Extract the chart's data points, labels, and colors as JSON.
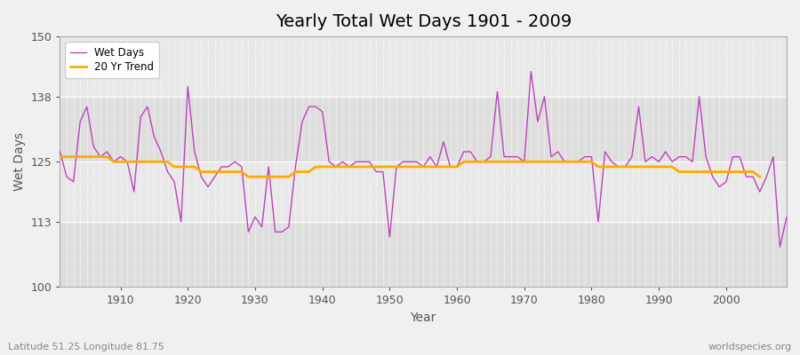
{
  "title": "Yearly Total Wet Days 1901 - 2009",
  "xlabel": "Year",
  "ylabel": "Wet Days",
  "bottom_left_label": "Latitude 51.25 Longitude 81.75",
  "bottom_right_label": "worldspecies.org",
  "ylim": [
    100,
    150
  ],
  "yticks": [
    100,
    113,
    125,
    138,
    150
  ],
  "xlim": [
    1901,
    2009
  ],
  "xticks": [
    1910,
    1920,
    1930,
    1940,
    1950,
    1960,
    1970,
    1980,
    1990,
    2000
  ],
  "background_color": "#f0f0f0",
  "plot_bg_color": "#e8e8e8",
  "band_color_light": "#e8e8e8",
  "band_color_dark": "#dedede",
  "wet_days_color": "#bb44bb",
  "trend_color": "#ffaa00",
  "years": [
    1901,
    1902,
    1903,
    1904,
    1905,
    1906,
    1907,
    1908,
    1909,
    1910,
    1911,
    1912,
    1913,
    1914,
    1915,
    1916,
    1917,
    1918,
    1919,
    1920,
    1921,
    1922,
    1923,
    1924,
    1925,
    1926,
    1927,
    1928,
    1929,
    1930,
    1931,
    1932,
    1933,
    1934,
    1935,
    1936,
    1937,
    1938,
    1939,
    1940,
    1941,
    1942,
    1943,
    1944,
    1945,
    1946,
    1947,
    1948,
    1949,
    1950,
    1951,
    1952,
    1953,
    1954,
    1955,
    1956,
    1957,
    1958,
    1959,
    1960,
    1961,
    1962,
    1963,
    1964,
    1965,
    1966,
    1967,
    1968,
    1969,
    1970,
    1971,
    1972,
    1973,
    1974,
    1975,
    1976,
    1977,
    1978,
    1979,
    1980,
    1981,
    1982,
    1983,
    1984,
    1985,
    1986,
    1987,
    1988,
    1989,
    1990,
    1991,
    1992,
    1993,
    1994,
    1995,
    1996,
    1997,
    1998,
    1999,
    2000,
    2001,
    2002,
    2003,
    2004,
    2005,
    2006,
    2007,
    2008,
    2009
  ],
  "wet_days": [
    127,
    122,
    121,
    133,
    136,
    128,
    126,
    127,
    125,
    126,
    125,
    119,
    134,
    136,
    130,
    127,
    123,
    121,
    113,
    140,
    127,
    122,
    120,
    122,
    124,
    124,
    125,
    124,
    111,
    114,
    112,
    124,
    111,
    111,
    112,
    124,
    133,
    136,
    136,
    135,
    125,
    124,
    125,
    124,
    125,
    125,
    125,
    123,
    123,
    110,
    124,
    125,
    125,
    125,
    124,
    126,
    124,
    129,
    124,
    124,
    127,
    127,
    125,
    125,
    126,
    139,
    126,
    126,
    126,
    125,
    143,
    133,
    138,
    126,
    127,
    125,
    125,
    125,
    126,
    126,
    113,
    127,
    125,
    124,
    124,
    126,
    136,
    125,
    126,
    125,
    127,
    125,
    126,
    126,
    125,
    138,
    126,
    122,
    120,
    121,
    126,
    126,
    122,
    122,
    119,
    122,
    126,
    108,
    114
  ],
  "trend": [
    126,
    126,
    126,
    126,
    126,
    126,
    126,
    126,
    125,
    125,
    125,
    125,
    125,
    125,
    125,
    125,
    125,
    124,
    124,
    124,
    124,
    123,
    123,
    123,
    123,
    123,
    123,
    123,
    122,
    122,
    122,
    122,
    122,
    122,
    122,
    123,
    123,
    123,
    124,
    124,
    124,
    124,
    124,
    124,
    124,
    124,
    124,
    124,
    124,
    124,
    124,
    124,
    124,
    124,
    124,
    124,
    124,
    124,
    124,
    124,
    125,
    125,
    125,
    125,
    125,
    125,
    125,
    125,
    125,
    125,
    125,
    125,
    125,
    125,
    125,
    125,
    125,
    125,
    125,
    125,
    124,
    124,
    124,
    124,
    124,
    124,
    124,
    124,
    124,
    124,
    124,
    124,
    123,
    123,
    123,
    123,
    123,
    123,
    123,
    123,
    123,
    123,
    123,
    123,
    122,
    null,
    null,
    null,
    null
  ]
}
